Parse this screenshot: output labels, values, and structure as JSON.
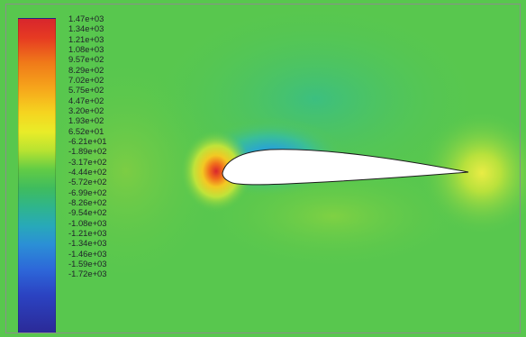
{
  "legend": {
    "labels": [
      "1.47e+03",
      "1.34e+03",
      "1.21e+03",
      "1.08e+03",
      "9.57e+02",
      "8.29e+02",
      "7.02e+02",
      "5.75e+02",
      "4.47e+02",
      "3.20e+02",
      "1.93e+02",
      "6.52e+01",
      "-6.21e+01",
      "-1.89e+02",
      "-3.17e+02",
      "-4.44e+02",
      "-5.72e+02",
      "-6.99e+02",
      "-8.26e+02",
      "-9.54e+02",
      "-1.08e+03",
      "-1.21e+03",
      "-1.34e+03",
      "-1.46e+03",
      "-1.59e+03",
      "-1.72e+03"
    ],
    "max_color": "#d8262d",
    "min_color": "#2b2a98"
  },
  "field": {
    "background_color": "#58c74e",
    "stagnation_color": "#d8262d",
    "suction_color": "#2b8fd6",
    "airfoil_color": "#ffffff"
  }
}
